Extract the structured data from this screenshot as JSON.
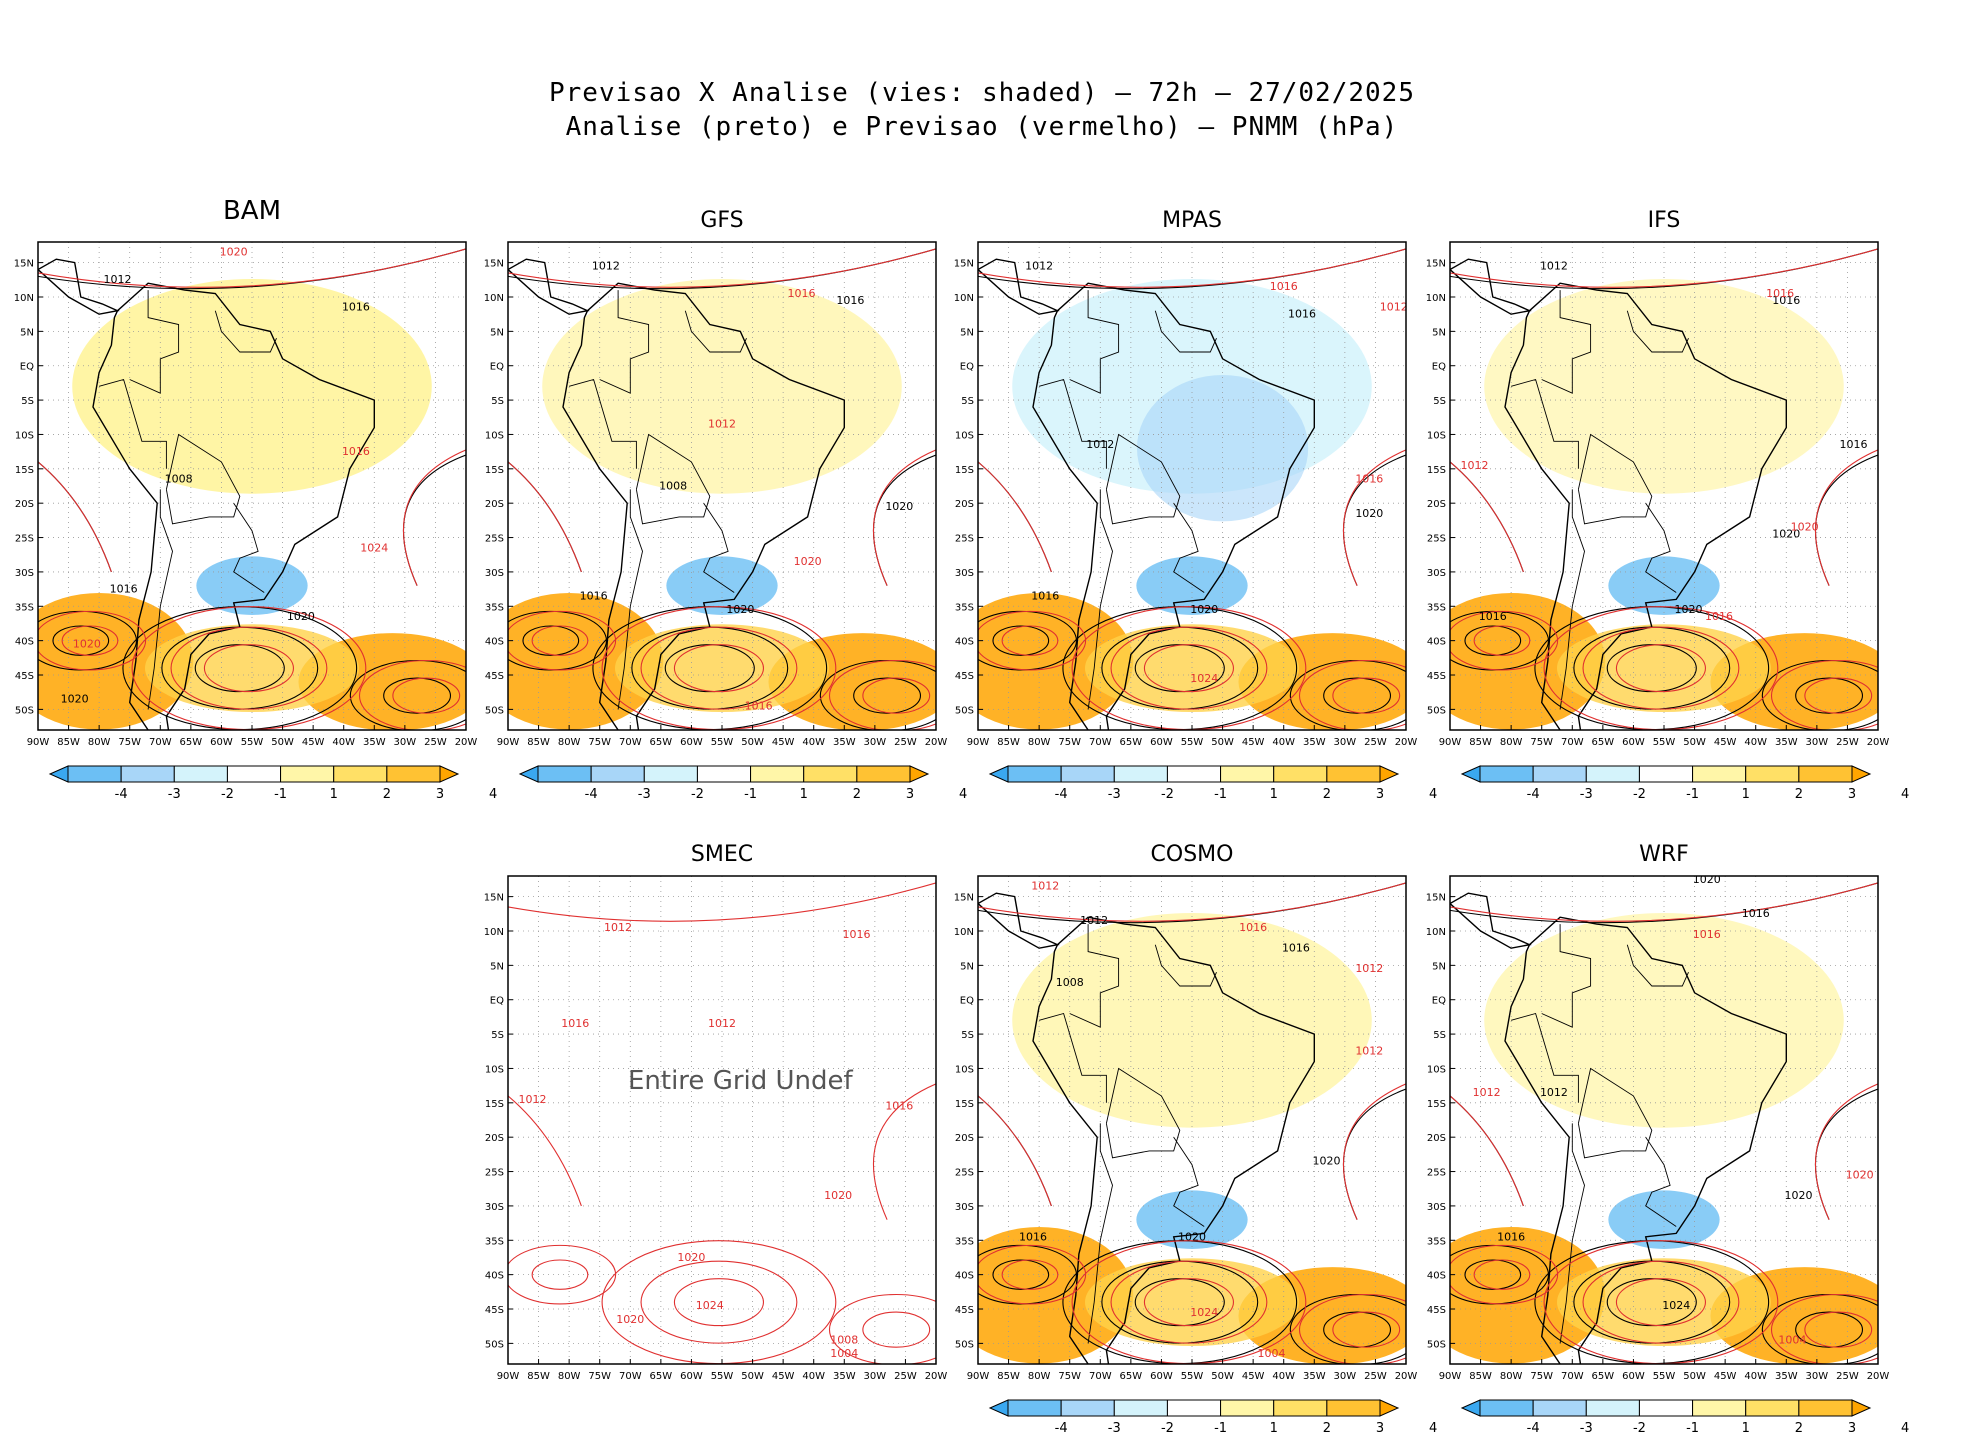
{
  "header": {
    "title_line1": "Previsao X Analise (vies: shaded) — 72h — 27/02/2025",
    "title_line2": "Analise (preto) e Previsao (vermelho) — PNMM (hPa)"
  },
  "chart_data": {
    "type": "contour-map",
    "variable": "PNMM (hPa)",
    "lead_time": "72h",
    "date": "27/02/2025",
    "shaded": "vies",
    "contour_colors": {
      "analysis": "#000000",
      "forecast": "#e03030"
    },
    "x_ticks": [
      "90W",
      "85W",
      "80W",
      "75W",
      "70W",
      "65W",
      "60W",
      "55W",
      "50W",
      "45W",
      "40W",
      "35W",
      "30W",
      "25W",
      "20W"
    ],
    "y_ticks": [
      "15N",
      "10N",
      "5N",
      "EQ",
      "5S",
      "10S",
      "15S",
      "20S",
      "25S",
      "30S",
      "35S",
      "40S",
      "45S",
      "50S"
    ],
    "xlim": [
      -90,
      -20
    ],
    "ylim": [
      -53,
      18
    ],
    "colorbar": {
      "labels": [
        "-4",
        "-3",
        "-2",
        "-1",
        "1",
        "2",
        "3",
        "4"
      ],
      "colors": [
        "#3aa8f0",
        "#6cbff4",
        "#a8d6f8",
        "#d4f3fb",
        "#ffffff",
        "#fff6a8",
        "#ffe066",
        "#ffc233",
        "#ffa500"
      ]
    },
    "no_data_message": "Entire Grid Undef",
    "panels": [
      {
        "model": "BAM",
        "bias": 1.2,
        "analysis_labels": [
          {
            "text": "1012",
            "lon": -77,
            "lat": 12
          },
          {
            "text": "1016",
            "lon": -38,
            "lat": 8
          },
          {
            "text": "1008",
            "lon": -67,
            "lat": -17
          },
          {
            "text": "1020",
            "lon": -47,
            "lat": -37
          },
          {
            "text": "1016",
            "lon": -76,
            "lat": -33
          },
          {
            "text": "1020",
            "lon": -84,
            "lat": -49
          }
        ],
        "forecast_labels": [
          {
            "text": "1020",
            "lon": -58,
            "lat": 16
          },
          {
            "text": "1016",
            "lon": -38,
            "lat": -13
          },
          {
            "text": "1024",
            "lon": -35,
            "lat": -27
          },
          {
            "text": "1020",
            "lon": -82,
            "lat": -41
          }
        ]
      },
      {
        "model": "GFS",
        "bias": 0.4,
        "analysis_labels": [
          {
            "text": "1012",
            "lon": -74,
            "lat": 14
          },
          {
            "text": "1016",
            "lon": -34,
            "lat": 9
          },
          {
            "text": "1008",
            "lon": -63,
            "lat": -18
          },
          {
            "text": "1020",
            "lon": -52,
            "lat": -36
          },
          {
            "text": "1016",
            "lon": -76,
            "lat": -34
          },
          {
            "text": "1020",
            "lon": -26,
            "lat": -21
          }
        ],
        "forecast_labels": [
          {
            "text": "1016",
            "lon": -42,
            "lat": 10
          },
          {
            "text": "1012",
            "lon": -55,
            "lat": -9
          },
          {
            "text": "1020",
            "lon": -41,
            "lat": -29
          },
          {
            "text": "1016",
            "lon": -49,
            "lat": -50
          }
        ]
      },
      {
        "model": "MPAS",
        "bias": -0.8,
        "analysis_labels": [
          {
            "text": "1012",
            "lon": -80,
            "lat": 14
          },
          {
            "text": "1016",
            "lon": -37,
            "lat": 7
          },
          {
            "text": "1012",
            "lon": -70,
            "lat": -12
          },
          {
            "text": "1020",
            "lon": -53,
            "lat": -36
          },
          {
            "text": "1016",
            "lon": -79,
            "lat": -34
          },
          {
            "text": "1020",
            "lon": -26,
            "lat": -22
          }
        ],
        "forecast_labels": [
          {
            "text": "1016",
            "lon": -40,
            "lat": 11
          },
          {
            "text": "1012",
            "lon": -22,
            "lat": 8
          },
          {
            "text": "1016",
            "lon": -26,
            "lat": -17
          },
          {
            "text": "1024",
            "lon": -53,
            "lat": -46
          }
        ]
      },
      {
        "model": "IFS",
        "bias": 0.2,
        "analysis_labels": [
          {
            "text": "1012",
            "lon": -73,
            "lat": 14
          },
          {
            "text": "1016",
            "lon": -35,
            "lat": 9
          },
          {
            "text": "1016",
            "lon": -24,
            "lat": -12
          },
          {
            "text": "1020",
            "lon": -51,
            "lat": -36
          },
          {
            "text": "1016",
            "lon": -83,
            "lat": -37
          },
          {
            "text": "1020",
            "lon": -35,
            "lat": -25
          }
        ],
        "forecast_labels": [
          {
            "text": "1016",
            "lon": -36,
            "lat": 10
          },
          {
            "text": "1012",
            "lon": -86,
            "lat": -15
          },
          {
            "text": "1020",
            "lon": -32,
            "lat": -24
          },
          {
            "text": "1016",
            "lon": -46,
            "lat": -37
          }
        ]
      },
      {
        "model": "SMEC",
        "bias": null,
        "analysis_labels": [],
        "forecast_labels": [
          {
            "text": "1012",
            "lon": -72,
            "lat": 10
          },
          {
            "text": "1016",
            "lon": -33,
            "lat": 9
          },
          {
            "text": "1016",
            "lon": -79,
            "lat": -4
          },
          {
            "text": "1012",
            "lon": -55,
            "lat": -4
          },
          {
            "text": "1012",
            "lon": -86,
            "lat": -15
          },
          {
            "text": "1016",
            "lon": -26,
            "lat": -16
          },
          {
            "text": "1020",
            "lon": -36,
            "lat": -29
          },
          {
            "text": "1020",
            "lon": -60,
            "lat": -38
          },
          {
            "text": "1024",
            "lon": -57,
            "lat": -45
          },
          {
            "text": "1020",
            "lon": -70,
            "lat": -47
          },
          {
            "text": "1008",
            "lon": -35,
            "lat": -50
          },
          {
            "text": "1004",
            "lon": -35,
            "lat": -52
          }
        ]
      },
      {
        "model": "COSMO",
        "bias": 0.5,
        "analysis_labels": [
          {
            "text": "1012",
            "lon": -71,
            "lat": 11
          },
          {
            "text": "1016",
            "lon": -38,
            "lat": 7
          },
          {
            "text": "1008",
            "lon": -75,
            "lat": 2
          },
          {
            "text": "1020",
            "lon": -55,
            "lat": -35
          },
          {
            "text": "1016",
            "lon": -81,
            "lat": -35
          },
          {
            "text": "1020",
            "lon": -33,
            "lat": -24
          }
        ],
        "forecast_labels": [
          {
            "text": "1012",
            "lon": -79,
            "lat": 16
          },
          {
            "text": "1016",
            "lon": -45,
            "lat": 10
          },
          {
            "text": "1012",
            "lon": -26,
            "lat": 4
          },
          {
            "text": "1012",
            "lon": -26,
            "lat": -8
          },
          {
            "text": "1024",
            "lon": -53,
            "lat": -46
          },
          {
            "text": "1004",
            "lon": -42,
            "lat": -52
          }
        ]
      },
      {
        "model": "WRF",
        "bias": 0.3,
        "analysis_labels": [
          {
            "text": "1020",
            "lon": -48,
            "lat": 17
          },
          {
            "text": "1016",
            "lon": -40,
            "lat": 12
          },
          {
            "text": "1012",
            "lon": -73,
            "lat": -14
          },
          {
            "text": "1024",
            "lon": -53,
            "lat": -45
          },
          {
            "text": "1016",
            "lon": -80,
            "lat": -35
          },
          {
            "text": "1020",
            "lon": -33,
            "lat": -29
          }
        ],
        "forecast_labels": [
          {
            "text": "1016",
            "lon": -48,
            "lat": 9
          },
          {
            "text": "1012",
            "lon": -84,
            "lat": -14
          },
          {
            "text": "1020",
            "lon": -23,
            "lat": -26
          },
          {
            "text": "1004",
            "lon": -34,
            "lat": -50
          }
        ]
      }
    ]
  }
}
